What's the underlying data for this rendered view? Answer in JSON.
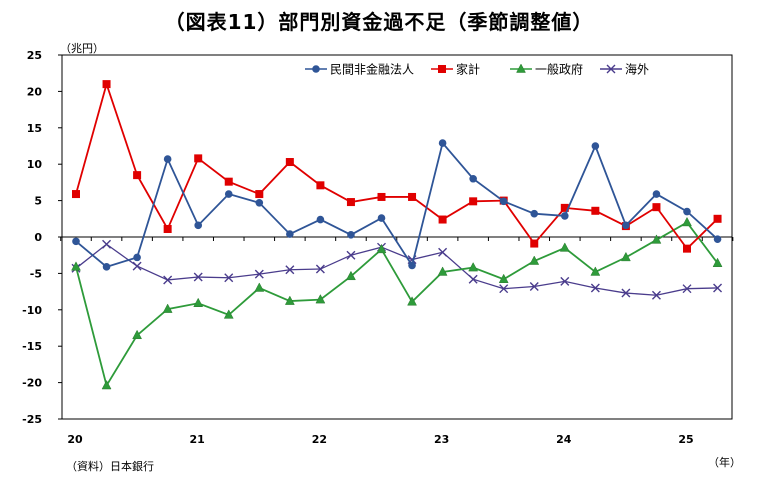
{
  "title": "（図表11）部門別資金過不足（季節調整値）",
  "y_unit": "（兆円）",
  "x_unit": "（年）",
  "source": "（資料）日本銀行",
  "chart_data": {
    "type": "line",
    "title": "（図表11）部門別資金過不足（季節調整値）",
    "ylabel": "（兆円）",
    "xlabel": "（年）",
    "ylim": [
      -25,
      25
    ],
    "yticks": [
      25,
      20,
      15,
      10,
      5,
      0,
      -5,
      -10,
      -15,
      -20,
      -25
    ],
    "year_labels": [
      "20",
      "21",
      "22",
      "23",
      "24",
      "25"
    ],
    "quarters": [
      "2020Q1",
      "2020Q2",
      "2020Q3",
      "2020Q4",
      "2021Q1",
      "2021Q2",
      "2021Q3",
      "2021Q4",
      "2022Q1",
      "2022Q2",
      "2022Q3",
      "2022Q4",
      "2023Q1",
      "2023Q2",
      "2023Q3",
      "2023Q4",
      "2024Q1",
      "2024Q2",
      "2024Q3",
      "2024Q4",
      "2025Q1",
      "2025Q2"
    ],
    "grid": false,
    "legend_position": "top-right",
    "series": [
      {
        "name": "民間非金融法人",
        "color": "#2F5597",
        "marker": "circle",
        "values": [
          -0.6,
          -4.1,
          -2.8,
          10.7,
          1.6,
          5.9,
          4.7,
          0.4,
          2.4,
          0.3,
          2.6,
          -3.9,
          12.9,
          8.0,
          4.9,
          3.2,
          2.9,
          12.5,
          1.6,
          5.9,
          3.5,
          -0.3
        ]
      },
      {
        "name": "家計",
        "color": "#E00000",
        "marker": "square",
        "values": [
          5.9,
          21.0,
          8.5,
          1.1,
          10.8,
          7.6,
          5.9,
          10.3,
          7.1,
          4.8,
          5.5,
          5.5,
          2.4,
          4.9,
          5.0,
          -0.9,
          4.0,
          3.6,
          1.5,
          4.1,
          -1.6,
          2.5
        ]
      },
      {
        "name": "一般政府",
        "color": "#2E9B3A",
        "marker": "triangle",
        "values": [
          -4.1,
          -20.4,
          -13.5,
          -9.9,
          -9.1,
          -10.7,
          -7.0,
          -8.8,
          -8.6,
          -5.4,
          -1.7,
          -8.9,
          -4.8,
          -4.2,
          -5.8,
          -3.3,
          -1.5,
          -4.8,
          -2.8,
          -0.4,
          2.0,
          -3.6
        ]
      },
      {
        "name": "海外",
        "color": "#4A3C8C",
        "marker": "x",
        "values": [
          -4.3,
          -1.0,
          -4.0,
          -5.9,
          -5.5,
          -5.6,
          -5.1,
          -4.5,
          -4.4,
          -2.5,
          -1.4,
          -3.1,
          -2.1,
          -5.8,
          -7.1,
          -6.8,
          -6.1,
          -7.0,
          -7.7,
          -8.0,
          -7.1,
          -7.0
        ]
      }
    ]
  }
}
